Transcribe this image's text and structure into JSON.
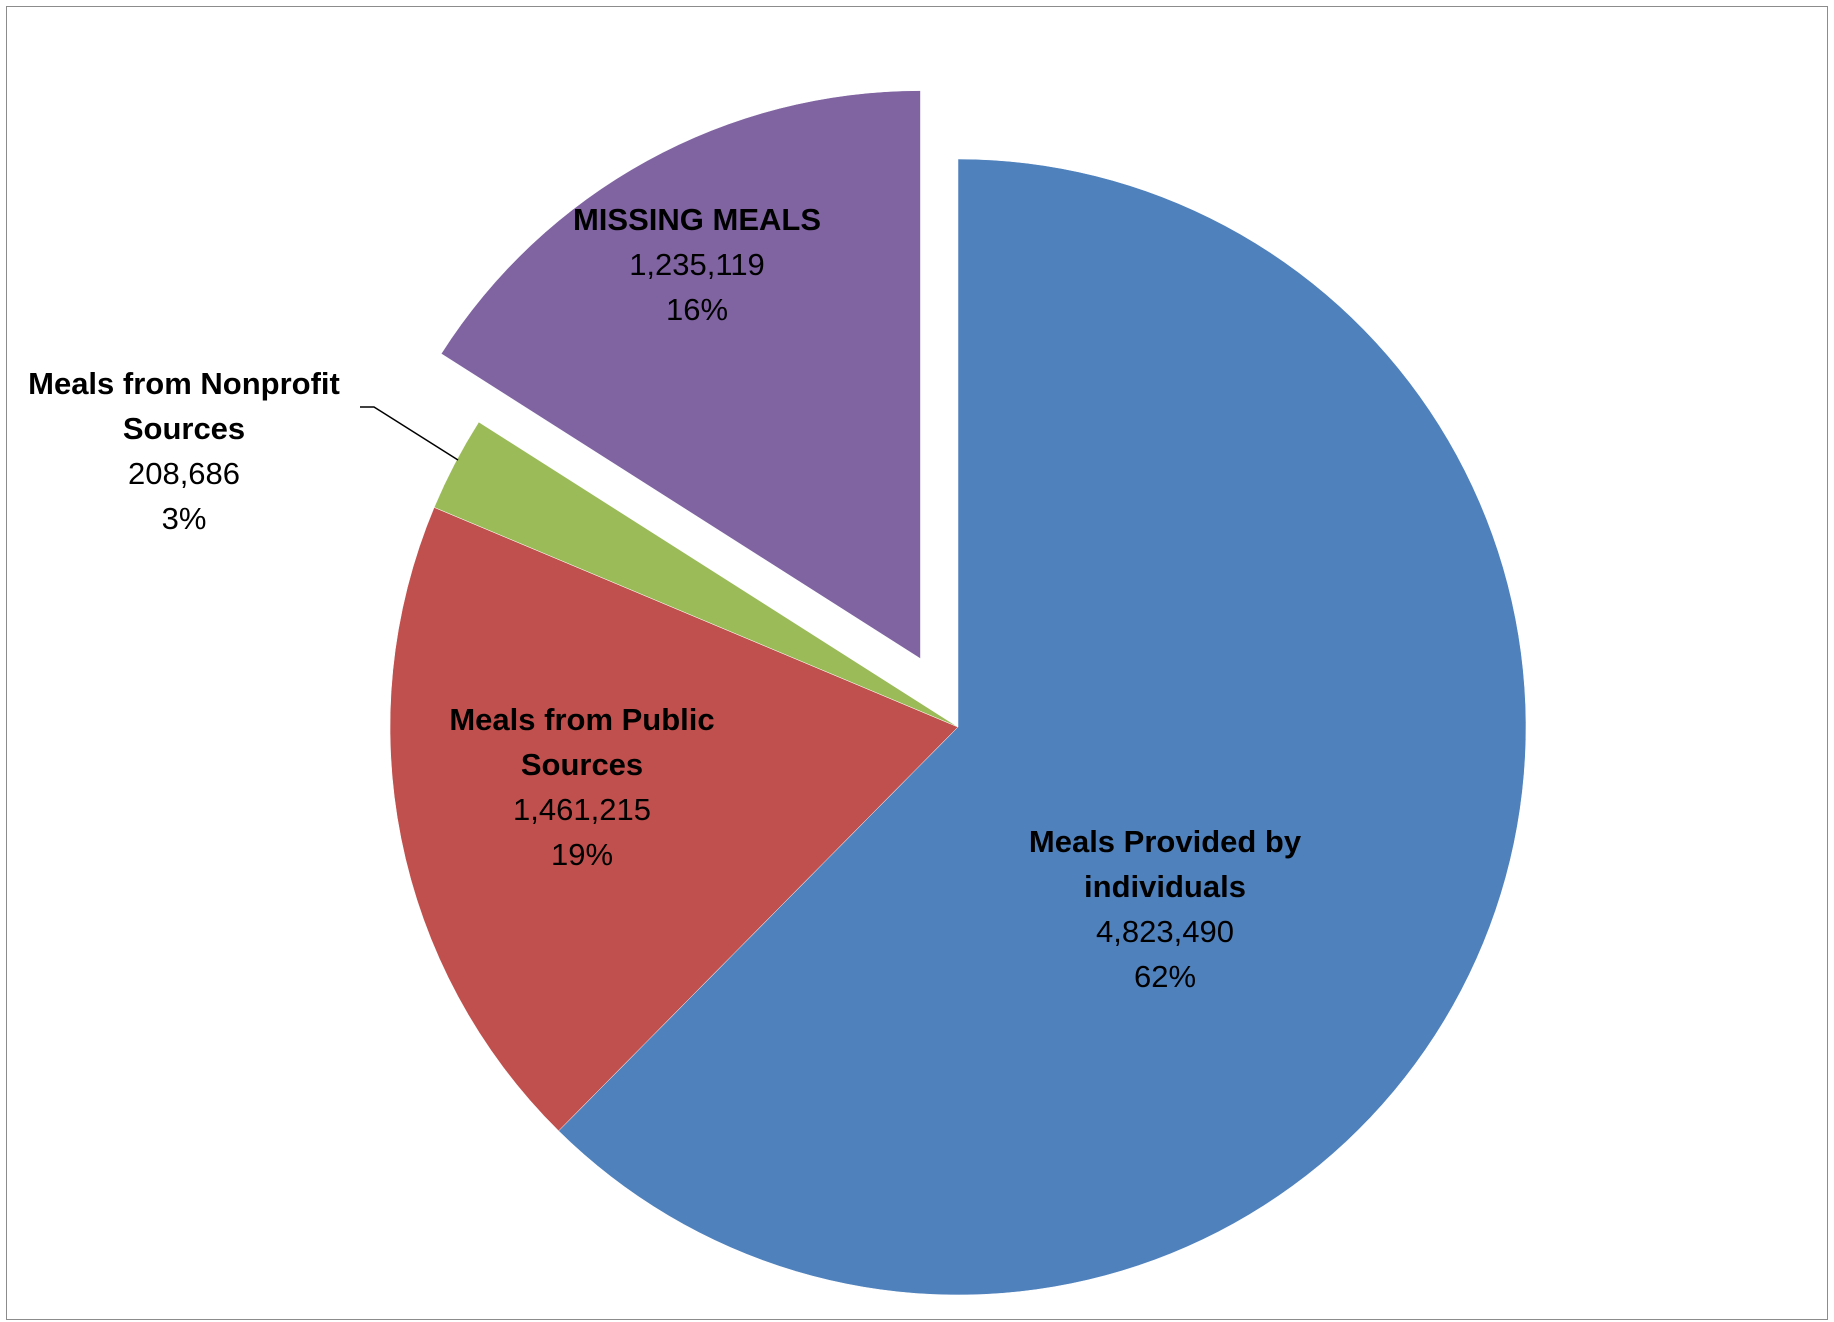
{
  "chart_data": {
    "type": "pie",
    "title": "",
    "legend": "none",
    "slices": [
      {
        "name_lines": [
          "Meals Provided by",
          "individuals"
        ],
        "value": 4823490,
        "value_label": "4,823,490",
        "percent_label": "62%",
        "color": "#4F81BD",
        "exploded": false
      },
      {
        "name_lines": [
          "Meals from Public",
          "Sources"
        ],
        "value": 1461215,
        "value_label": "1,461,215",
        "percent_label": "19%",
        "color": "#C0504D",
        "exploded": false
      },
      {
        "name_lines": [
          "Meals from Nonprofit",
          "Sources"
        ],
        "value": 208686,
        "value_label": "208,686",
        "percent_label": "3%",
        "color": "#9BBB59",
        "exploded": false
      },
      {
        "name_lines": [
          "MISSING MEALS"
        ],
        "value": 1235119,
        "value_label": "1,235,119",
        "percent_label": "16%",
        "color": "#8064A2",
        "exploded": true
      }
    ]
  }
}
